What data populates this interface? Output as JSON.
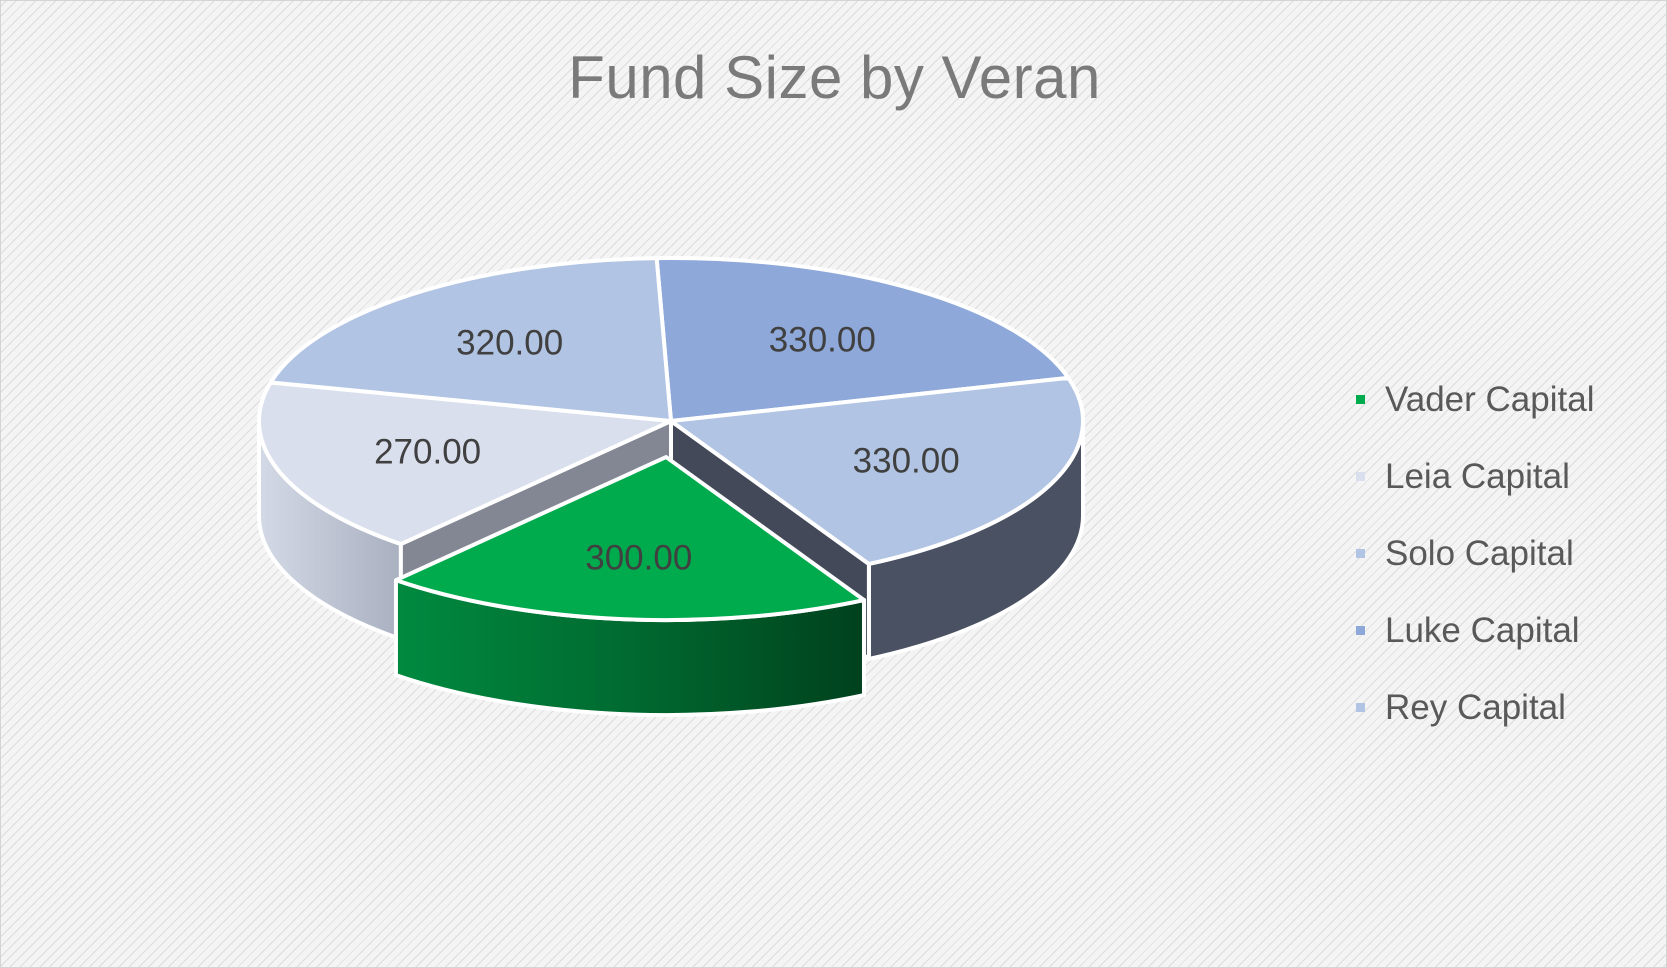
{
  "chart_data": {
    "type": "pie",
    "title": "Fund Size by Veran",
    "legend_position": "right",
    "slices": [
      {
        "name": "Vader Capital",
        "value": 300,
        "label": "300.00",
        "color": "#00AB4E",
        "exploded": true
      },
      {
        "name": "Leia Capital",
        "value": 270,
        "label": "270.00",
        "color": "#DADFEE"
      },
      {
        "name": "Solo Capital",
        "value": 320,
        "label": "320.00",
        "color": "#B2C4E3"
      },
      {
        "name": "Luke Capital",
        "value": 330,
        "label": "330.00",
        "color": "#8EA8DA"
      },
      {
        "name": "Rey Capital",
        "value": 330,
        "label": "330.00",
        "color": "#B2C4E3"
      }
    ]
  }
}
